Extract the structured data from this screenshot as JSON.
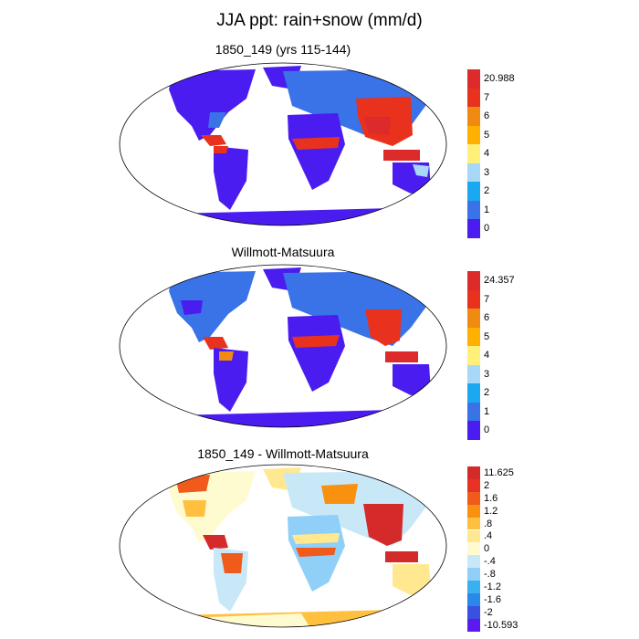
{
  "figure_title": "JJA ppt: rain+snow (mm/d)",
  "panels": [
    {
      "title": "1850_149 (yrs 115-144)",
      "colorbar": {
        "labels": [
          "20.988",
          "7",
          "6",
          "5",
          "4",
          "3",
          "2",
          "1",
          "0"
        ],
        "colors": [
          "#dd2a2a",
          "#e8321e",
          "#f08a10",
          "#ffb000",
          "#fff07a",
          "#a8d8f8",
          "#1aa8f0",
          "#3a72e8",
          "#4a1cf0"
        ]
      }
    },
    {
      "title": "Willmott-Matsuura",
      "colorbar": {
        "labels": [
          "24.357",
          "7",
          "6",
          "5",
          "4",
          "3",
          "2",
          "1",
          "0"
        ],
        "colors": [
          "#dd2a2a",
          "#e8321e",
          "#f08a10",
          "#ffb000",
          "#fff07a",
          "#a8d8f8",
          "#1aa8f0",
          "#3a72e8",
          "#4a1cf0"
        ]
      }
    },
    {
      "title": "1850_149 - Willmott-Matsuura",
      "colorbar": {
        "labels": [
          "11.625",
          "2",
          "1.6",
          "1.2",
          ".8",
          ".4",
          "0",
          "-.4",
          "-.8",
          "-1.2",
          "-1.6",
          "-2",
          "-10.593"
        ],
        "colors": [
          "#d42a2a",
          "#e83226",
          "#f05a1a",
          "#f89010",
          "#ffc040",
          "#ffe890",
          "#fffbd0",
          "#c8e8f8",
          "#90d0f8",
          "#3ab0f0",
          "#2a88e8",
          "#3a50e0",
          "#5a1af0"
        ]
      }
    }
  ]
}
